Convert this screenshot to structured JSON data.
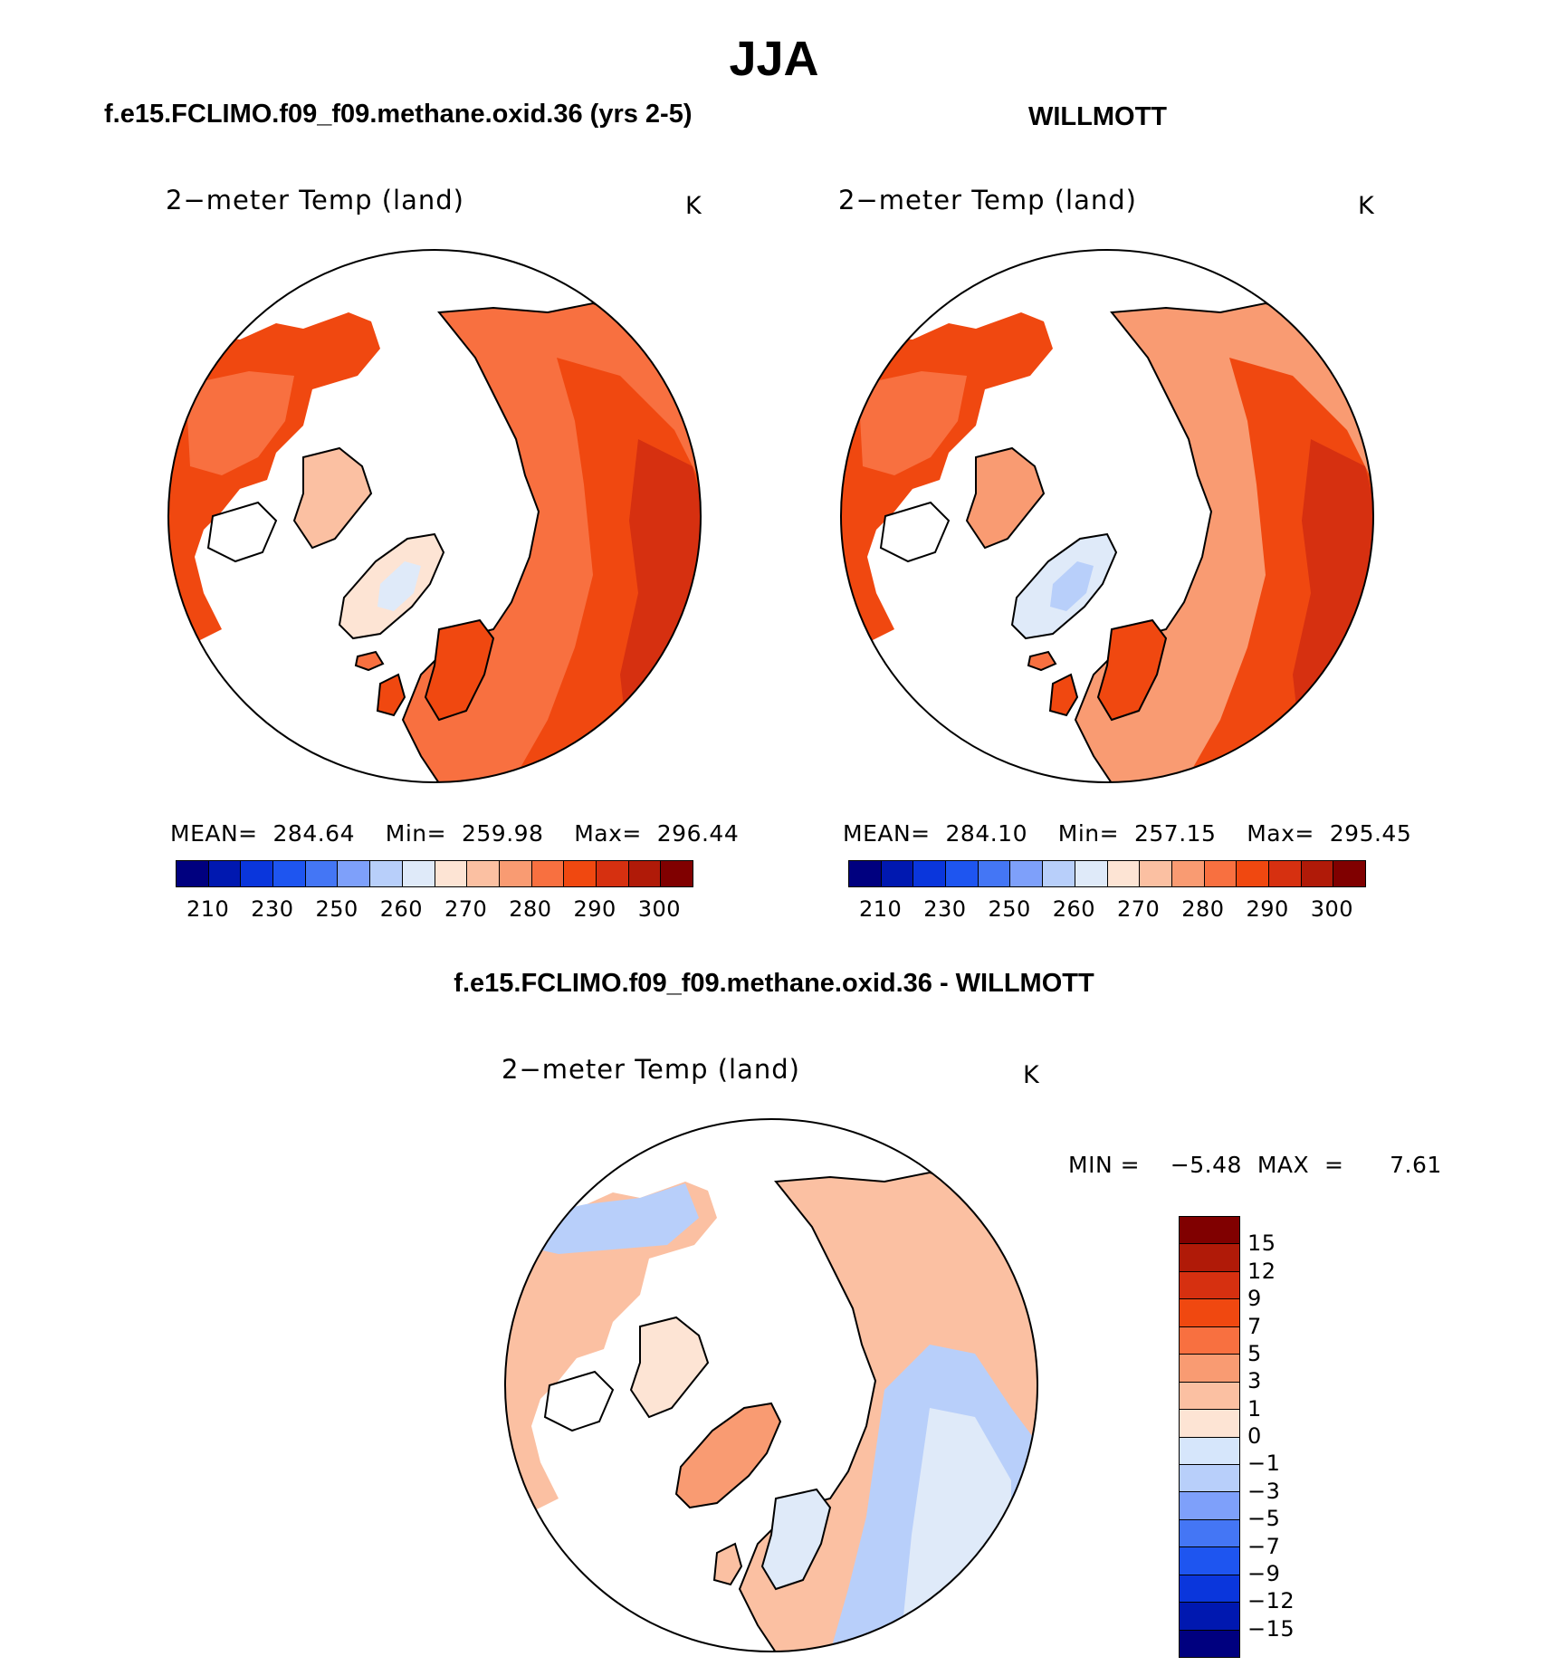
{
  "figure": {
    "title": "JJA",
    "bottom_title": "f.e15.FCLIMO.f09_f09.methane.oxid.36 - WILLMOTT"
  },
  "panels": [
    {
      "case_title": "f.e15.FCLIMO.f09_f09.methane.oxid.36 (yrs 2-5)",
      "variable": "2−meter Temp (land)",
      "units": "K",
      "stats": "MEAN=  284.64    Min=  259.98    Max=  296.44",
      "colorbar_labels": [
        "210",
        "230",
        "250",
        "260",
        "270",
        "280",
        "290",
        "300"
      ]
    },
    {
      "case_title": "WILLMOTT",
      "variable": "2−meter Temp (land)",
      "units": "K",
      "stats": "MEAN=  284.10    Min=  257.15    Max=  295.45",
      "colorbar_labels": [
        "210",
        "230",
        "250",
        "260",
        "270",
        "280",
        "290",
        "300"
      ]
    },
    {
      "case_title": "",
      "variable": "2−meter Temp (land)",
      "units": "K",
      "stats": "MIN =    −5.48  MAX  =      7.61",
      "colorbar_labels": [
        "15",
        "12",
        "9",
        "7",
        "5",
        "3",
        "1",
        "0",
        "−1",
        "−3",
        "−5",
        "−7",
        "−9",
        "−12",
        "−15"
      ]
    }
  ],
  "colors": {
    "abs_scale": [
      "#00007f",
      "#0018b0",
      "#0a36dc",
      "#1e55f0",
      "#4476f5",
      "#7ea0fa",
      "#b8cffa",
      "#dfeaf9",
      "#fde4d4",
      "#fbc0a2",
      "#f99b72",
      "#f87040",
      "#f04810",
      "#d63010",
      "#b01a08",
      "#800000"
    ],
    "diff_scale": [
      "#800000",
      "#b01a08",
      "#d63010",
      "#f04810",
      "#f87040",
      "#f99b72",
      "#fbc0a2",
      "#fde4d4",
      "#d6e6fb",
      "#b8cffa",
      "#7ea0fa",
      "#4476f5",
      "#1e55f0",
      "#0a36dc",
      "#0018b0",
      "#00007f"
    ]
  }
}
